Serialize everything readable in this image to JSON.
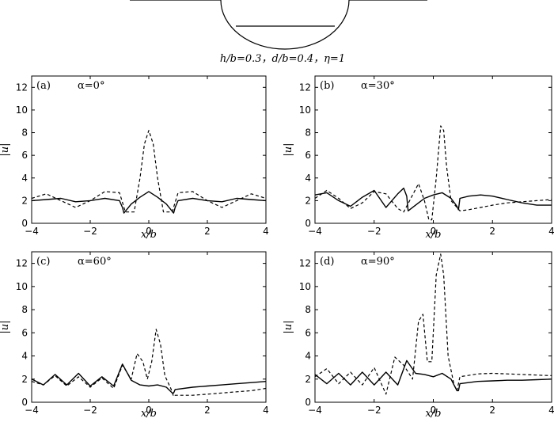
{
  "caption": "h/b=0.3，d/b=0.4，η=1",
  "chart_data": [
    {
      "type": "line",
      "panel_label": "(a)",
      "angle_label": "α=0°",
      "xlabel": "x/b",
      "ylabel": "|u|",
      "xlim": [
        -4,
        4
      ],
      "ylim": [
        0,
        13
      ],
      "xticks": [
        -4,
        -2,
        0,
        2,
        4
      ],
      "yticks": [
        0,
        2,
        4,
        6,
        8,
        10,
        12
      ],
      "series": [
        {
          "style": "solid",
          "x": [
            -4,
            -3.5,
            -3,
            -2.5,
            -2,
            -1.5,
            -1,
            -0.9,
            -0.85,
            -0.6,
            -0.3,
            0,
            0.3,
            0.6,
            0.85,
            0.9,
            1,
            1.5,
            2,
            2.5,
            3,
            3.5,
            4
          ],
          "y": [
            2.0,
            2.1,
            2.2,
            1.9,
            2.0,
            2.2,
            2.0,
            1.4,
            0.9,
            1.7,
            2.3,
            2.8,
            2.3,
            1.7,
            0.9,
            1.4,
            2.0,
            2.2,
            2.0,
            1.9,
            2.2,
            2.1,
            2.0
          ]
        },
        {
          "style": "dashed",
          "x": [
            -4,
            -3.5,
            -3,
            -2.5,
            -2,
            -1.5,
            -1,
            -0.8,
            -0.5,
            -0.3,
            -0.15,
            0,
            0.15,
            0.3,
            0.5,
            0.8,
            1,
            1.5,
            2,
            2.5,
            3,
            3.5,
            4
          ],
          "y": [
            2.2,
            2.6,
            2.0,
            1.4,
            2.0,
            2.8,
            2.7,
            1.0,
            1.0,
            4.0,
            7.0,
            8.2,
            7.0,
            4.0,
            1.0,
            1.0,
            2.7,
            2.8,
            2.0,
            1.4,
            2.0,
            2.6,
            2.2
          ]
        }
      ]
    },
    {
      "type": "line",
      "panel_label": "(b)",
      "angle_label": "α=30°",
      "xlabel": "x/b",
      "ylabel": "|u|",
      "xlim": [
        -4,
        4
      ],
      "ylim": [
        0,
        13
      ],
      "xticks": [
        -4,
        -2,
        0,
        2,
        4
      ],
      "yticks": [
        0,
        2,
        4,
        6,
        8,
        10,
        12
      ],
      "series": [
        {
          "style": "solid",
          "x": [
            -4,
            -3.6,
            -3.2,
            -2.8,
            -2.4,
            -2.0,
            -1.6,
            -1.2,
            -1.0,
            -0.9,
            -0.85,
            -0.6,
            -0.3,
            0,
            0.3,
            0.6,
            0.8,
            0.85,
            0.9,
            1.2,
            1.6,
            2.0,
            2.5,
            3.0,
            3.5,
            4
          ],
          "y": [
            2.5,
            2.7,
            2.0,
            1.5,
            2.3,
            2.9,
            1.4,
            2.6,
            3.1,
            2.4,
            1.1,
            1.6,
            2.2,
            2.5,
            2.7,
            2.2,
            1.5,
            1.2,
            2.2,
            2.4,
            2.5,
            2.4,
            2.1,
            1.8,
            1.6,
            1.6
          ]
        },
        {
          "style": "dashed",
          "x": [
            -4,
            -3.6,
            -3.2,
            -2.8,
            -2.4,
            -2.0,
            -1.6,
            -1.2,
            -1.0,
            -0.8,
            -0.5,
            -0.3,
            -0.15,
            -0.05,
            0.1,
            0.25,
            0.35,
            0.45,
            0.6,
            0.8,
            0.9,
            1.2,
            1.6,
            2.0,
            2.5,
            3.0,
            3.5,
            4
          ],
          "y": [
            2.2,
            2.9,
            2.2,
            1.3,
            1.8,
            2.8,
            2.6,
            1.3,
            1.0,
            2.0,
            3.5,
            2.0,
            0.3,
            0.3,
            4.0,
            8.6,
            8.2,
            5.0,
            2.0,
            1.4,
            1.1,
            1.2,
            1.4,
            1.6,
            1.8,
            1.9,
            2.0,
            2.1
          ]
        }
      ]
    },
    {
      "type": "line",
      "panel_label": "(c)",
      "angle_label": "α=60°",
      "xlabel": "x/b",
      "ylabel": "|u|",
      "xlim": [
        -4,
        4
      ],
      "ylim": [
        0,
        13
      ],
      "xticks": [
        -4,
        -2,
        0,
        2,
        4
      ],
      "yticks": [
        0,
        2,
        4,
        6,
        8,
        10,
        12
      ],
      "series": [
        {
          "style": "solid",
          "x": [
            -4,
            -3.6,
            -3.2,
            -2.8,
            -2.4,
            -2.0,
            -1.6,
            -1.2,
            -0.9,
            -0.6,
            -0.3,
            0,
            0.3,
            0.6,
            0.8,
            0.85,
            0.9,
            1.5,
            2.0,
            2.5,
            3.0,
            3.5,
            4
          ],
          "y": [
            2.0,
            1.5,
            2.4,
            1.5,
            2.5,
            1.4,
            2.2,
            1.4,
            3.3,
            1.9,
            1.5,
            1.4,
            1.5,
            1.3,
            0.8,
            0.8,
            1.1,
            1.3,
            1.4,
            1.5,
            1.6,
            1.7,
            1.8
          ]
        },
        {
          "style": "dashed",
          "x": [
            -4,
            -3.6,
            -3.2,
            -2.8,
            -2.4,
            -2.0,
            -1.6,
            -1.2,
            -0.9,
            -0.6,
            -0.4,
            -0.2,
            -0.05,
            0.1,
            0.25,
            0.4,
            0.55,
            0.75,
            0.85,
            0.9,
            1.5,
            2.0,
            2.5,
            3.0,
            3.5,
            4
          ],
          "y": [
            1.8,
            1.5,
            2.3,
            1.4,
            2.2,
            1.3,
            2.1,
            1.2,
            3.2,
            2.0,
            4.2,
            3.5,
            2.0,
            3.5,
            6.3,
            5.0,
            2.3,
            1.2,
            0.5,
            0.6,
            0.6,
            0.7,
            0.8,
            0.9,
            1.0,
            1.2
          ]
        }
      ]
    },
    {
      "type": "line",
      "panel_label": "(d)",
      "angle_label": "α=90°",
      "xlabel": "x/b",
      "ylabel": "|u|",
      "xlim": [
        -4,
        4
      ],
      "ylim": [
        0,
        13
      ],
      "xticks": [
        -4,
        -2,
        0,
        2,
        4
      ],
      "yticks": [
        0,
        2,
        4,
        6,
        8,
        10,
        12
      ],
      "series": [
        {
          "style": "solid",
          "x": [
            -4,
            -3.6,
            -3.2,
            -2.8,
            -2.4,
            -2.0,
            -1.6,
            -1.2,
            -0.9,
            -0.6,
            -0.3,
            0,
            0.3,
            0.6,
            0.8,
            0.85,
            0.9,
            1.5,
            2.0,
            2.5,
            3.0,
            3.5,
            4
          ],
          "y": [
            2.4,
            1.6,
            2.5,
            1.5,
            2.6,
            1.5,
            2.6,
            1.5,
            3.6,
            2.5,
            2.4,
            2.2,
            2.5,
            2.0,
            1.0,
            1.0,
            1.6,
            1.8,
            1.85,
            1.9,
            1.9,
            1.95,
            2.0
          ]
        },
        {
          "style": "dashed",
          "x": [
            -4,
            -3.6,
            -3.2,
            -2.8,
            -2.4,
            -2.0,
            -1.6,
            -1.3,
            -1.0,
            -0.7,
            -0.5,
            -0.35,
            -0.2,
            -0.05,
            0.1,
            0.25,
            0.35,
            0.5,
            0.7,
            0.8,
            0.9,
            1.5,
            2.0,
            2.5,
            3.0,
            3.5,
            4
          ],
          "y": [
            2.2,
            2.9,
            1.6,
            2.6,
            1.5,
            3.0,
            0.7,
            3.9,
            3.2,
            2.0,
            7.0,
            7.6,
            3.5,
            3.5,
            11.0,
            12.8,
            11.0,
            4.0,
            1.5,
            1.0,
            2.2,
            2.45,
            2.5,
            2.45,
            2.4,
            2.35,
            2.3
          ]
        }
      ]
    }
  ]
}
